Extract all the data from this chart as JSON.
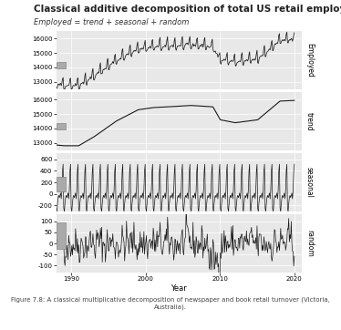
{
  "title": "Classical additive decomposition of total US retail employment",
  "subtitle": "Employed = trend + seasonal + random",
  "xlabel": "Year",
  "caption": "Figure 7.8: A classical multiplicative decomposition of newspaper and book retail turnover (Victoria,\nAustralia).",
  "year_start": 1988,
  "year_end": 2021,
  "bg_color": "#ffffff",
  "panel_bg": "#e8e8e8",
  "line_color": "#1a1a1a",
  "ylabel_employed": "Employed",
  "ylabel_trend": "trend",
  "ylabel_seasonal": "seasonal",
  "ylabel_random": "random",
  "employed_ylim": [
    12500,
    16500
  ],
  "employed_yticks": [
    13000,
    14000,
    15000,
    16000
  ],
  "trend_ylim": [
    12500,
    16500
  ],
  "trend_yticks": [
    13000,
    14000,
    15000,
    16000
  ],
  "seasonal_ylim": [
    -300,
    700
  ],
  "seasonal_yticks": [
    -200,
    0,
    200,
    400,
    600
  ],
  "random_ylim": [
    -130,
    130
  ],
  "random_yticks": [
    -100,
    -50,
    0,
    50,
    100
  ],
  "box_color": "#aaaaaa",
  "grid_color": "#ffffff",
  "tick_fontsize": 5,
  "label_fontsize": 5.5,
  "title_fontsize": 7.5,
  "subtitle_fontsize": 6,
  "xlabel_fontsize": 6,
  "caption_fontsize": 5
}
